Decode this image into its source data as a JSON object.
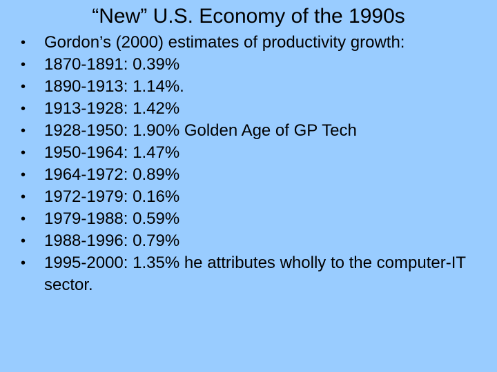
{
  "slide": {
    "title": "“New” U.S. Economy of the 1990s",
    "bullet_glyph": "•",
    "bullets": [
      "Gordon’s (2000) estimates of productivity growth:",
      "1870-1891: 0.39%",
      "1890-1913: 1.14%.",
      "1913-1928: 1.42%",
      "1928-1950: 1.90% Golden Age of GP Tech",
      "1950-1964: 1.47%",
      "1964-1972: 0.89%",
      "1972-1979: 0.16%",
      "1979-1988: 0.59%",
      "1988-1996: 0.79%",
      "1995-2000: 1.35% he attributes wholly to the computer-IT sector."
    ],
    "background_color": "#99ccff"
  }
}
